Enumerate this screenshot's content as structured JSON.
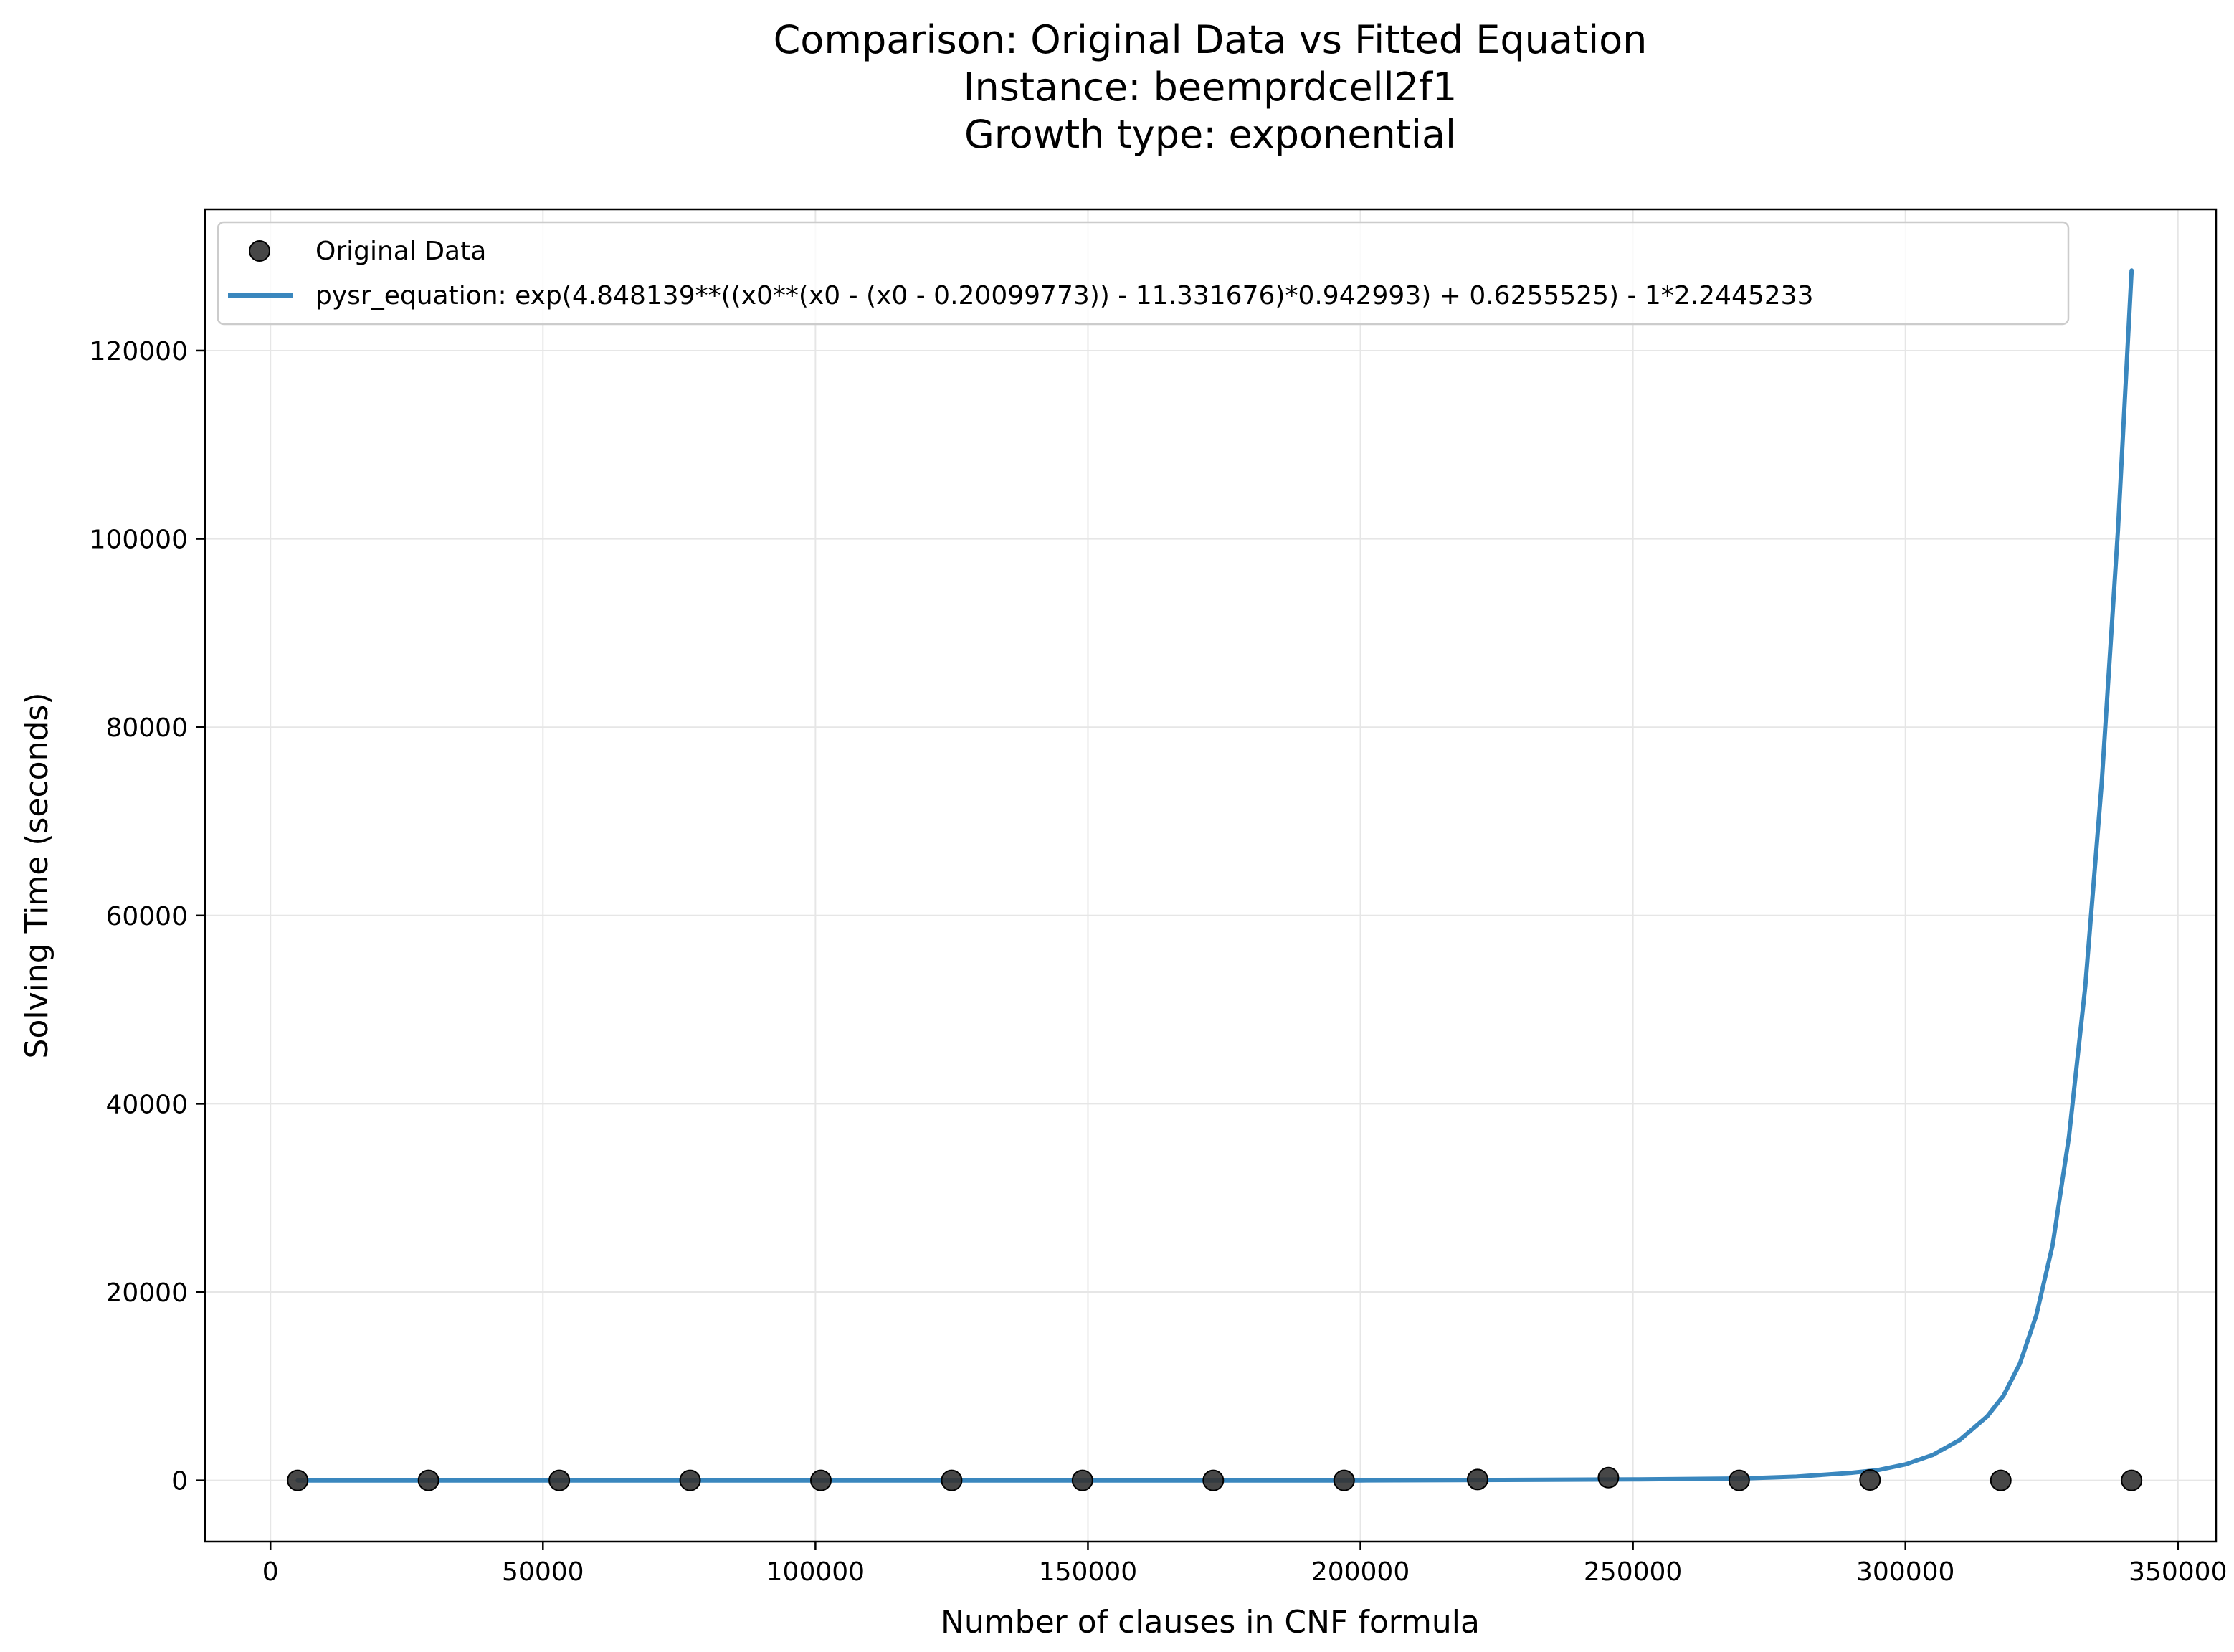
{
  "chart_data": {
    "type": "scatter",
    "title_lines": [
      "Comparison: Original Data vs Fitted Equation",
      "Instance: beemprdcell2f1",
      "Growth type: exponential"
    ],
    "xlabel": "Number of clauses in CNF formula",
    "ylabel": "Solving Time (seconds)",
    "xlim": [
      -12000,
      357000
    ],
    "ylim": [
      -6500,
      135000
    ],
    "xticks": [
      0,
      50000,
      100000,
      150000,
      200000,
      250000,
      300000,
      350000
    ],
    "xtick_labels": [
      "0",
      "50000",
      "100000",
      "150000",
      "200000",
      "250000",
      "300000",
      "350000"
    ],
    "yticks": [
      0,
      20000,
      40000,
      60000,
      80000,
      100000,
      120000
    ],
    "ytick_labels": [
      "0",
      "20000",
      "40000",
      "60000",
      "80000",
      "100000",
      "120000"
    ],
    "grid": true,
    "legend_position": "top-left",
    "series": [
      {
        "name": "Original Data",
        "kind": "scatter",
        "color": "#333333",
        "x": [
          5000,
          29000,
          53000,
          77000,
          101000,
          125000,
          149000,
          173000,
          197000,
          221500,
          245500,
          269500,
          293500,
          317500,
          341500
        ],
        "y": [
          0,
          0,
          0,
          0,
          0,
          0,
          0,
          0,
          0,
          100,
          300,
          0,
          50,
          0,
          0
        ]
      },
      {
        "name": "pysr_equation: exp(4.848139**((x0**(x0 - (x0 - 0.20099773)) - 11.331676)*0.942993) + 0.6255525) - 1*2.2445233",
        "kind": "line",
        "color": "#3a87be",
        "x": [
          5000,
          100000,
          200000,
          250000,
          270000,
          280000,
          290000,
          295000,
          300000,
          305000,
          310000,
          315000,
          318000,
          321000,
          324000,
          327000,
          330000,
          333000,
          336000,
          339000,
          341500
        ],
        "y": [
          0,
          0,
          0,
          100,
          200,
          400,
          800,
          1100,
          1700,
          2700,
          4300,
          6800,
          9000,
          12400,
          17500,
          25000,
          36500,
          52500,
          74000,
          101000,
          128500
        ]
      }
    ]
  }
}
